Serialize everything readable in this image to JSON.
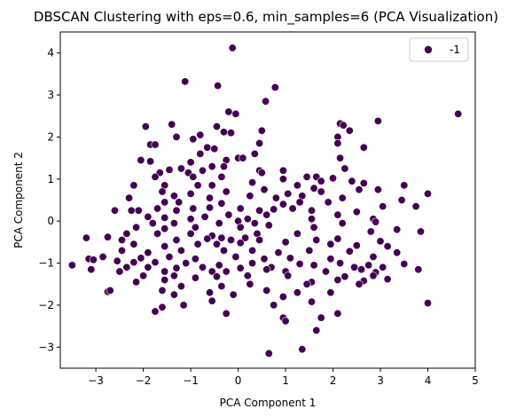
{
  "chart_data": {
    "type": "scatter",
    "title": "DBSCAN Clustering with eps=0.6, min_samples=6 (PCA Visualization)",
    "xlabel": "PCA Component 1",
    "ylabel": "PCA Component 2",
    "xlim": [
      -3.75,
      5.0
    ],
    "ylim": [
      -3.5,
      4.5
    ],
    "xticks": [
      -3,
      -2,
      -1,
      0,
      1,
      2,
      3,
      4,
      5
    ],
    "yticks": [
      -3,
      -2,
      -1,
      0,
      1,
      2,
      3,
      4
    ],
    "grid": false,
    "legend": {
      "position": "top-right",
      "entries": [
        {
          "label": "-1",
          "color": "#440154"
        }
      ]
    },
    "series": [
      {
        "name": "-1",
        "color": "#440154",
        "points": [
          [
            -0.12,
            4.12
          ],
          [
            -0.43,
            3.22
          ],
          [
            0.78,
            3.18
          ],
          [
            -1.12,
            3.32
          ],
          [
            4.64,
            2.55
          ],
          [
            0.58,
            2.85
          ],
          [
            -0.2,
            2.6
          ],
          [
            -0.05,
            2.55
          ],
          [
            -0.45,
            2.25
          ],
          [
            -1.4,
            2.3
          ],
          [
            -1.95,
            2.25
          ],
          [
            2.15,
            2.32
          ],
          [
            2.22,
            2.28
          ],
          [
            2.95,
            2.38
          ],
          [
            2.1,
            2.0
          ],
          [
            2.35,
            2.15
          ],
          [
            -0.8,
            2.05
          ],
          [
            -1.3,
            2.0
          ],
          [
            0.5,
            2.15
          ],
          [
            -0.15,
            2.1
          ],
          [
            -0.3,
            2.12
          ],
          [
            -1.85,
            1.82
          ],
          [
            -1.75,
            1.82
          ],
          [
            -0.95,
            1.95
          ],
          [
            -0.65,
            1.75
          ],
          [
            -0.5,
            1.72
          ],
          [
            0.45,
            1.85
          ],
          [
            2.1,
            1.85
          ],
          [
            -0.8,
            1.6
          ],
          [
            0.35,
            1.6
          ],
          [
            2.65,
            1.75
          ],
          [
            0.0,
            1.5
          ],
          [
            -2.05,
            1.45
          ],
          [
            -1.85,
            1.42
          ],
          [
            -0.25,
            1.45
          ],
          [
            0.1,
            1.5
          ],
          [
            -1.0,
            1.4
          ],
          [
            2.15,
            1.5
          ],
          [
            -1.2,
            1.25
          ],
          [
            -1.45,
            1.22
          ],
          [
            -0.55,
            1.3
          ],
          [
            -0.3,
            1.3
          ],
          [
            -1.65,
            1.15
          ],
          [
            -1.05,
            1.15
          ],
          [
            -0.75,
            1.2
          ],
          [
            0.45,
            1.2
          ],
          [
            0.5,
            1.15
          ],
          [
            0.95,
            1.2
          ],
          [
            2.25,
            1.25
          ],
          [
            1.45,
            1.05
          ],
          [
            1.65,
            1.05
          ],
          [
            -1.75,
            1.05
          ],
          [
            -0.95,
            1.05
          ],
          [
            -0.35,
            1.05
          ],
          [
            0.95,
            1.0
          ],
          [
            1.75,
            0.95
          ],
          [
            2.0,
            1.02
          ],
          [
            2.65,
            0.9
          ],
          [
            -2.2,
            0.85
          ],
          [
            -1.55,
            0.85
          ],
          [
            -0.85,
            0.85
          ],
          [
            -0.55,
            0.85
          ],
          [
            0.3,
            0.92
          ],
          [
            1.25,
            0.85
          ],
          [
            1.6,
            0.78
          ],
          [
            2.4,
            0.95
          ],
          [
            2.95,
            0.75
          ],
          [
            3.5,
            0.85
          ],
          [
            -1.6,
            0.7
          ],
          [
            -1.0,
            0.65
          ],
          [
            -0.25,
            0.7
          ],
          [
            0.55,
            0.75
          ],
          [
            1.05,
            0.65
          ],
          [
            1.35,
            0.6
          ],
          [
            1.75,
            0.7
          ],
          [
            2.55,
            0.75
          ],
          [
            4.0,
            0.65
          ],
          [
            -2.3,
            0.55
          ],
          [
            -1.35,
            0.6
          ],
          [
            -0.6,
            0.55
          ],
          [
            0.25,
            0.6
          ],
          [
            0.8,
            0.55
          ],
          [
            1.3,
            0.45
          ],
          [
            2.2,
            0.55
          ],
          [
            3.45,
            0.5
          ],
          [
            -1.55,
            0.45
          ],
          [
            -1.25,
            0.45
          ],
          [
            -0.35,
            0.42
          ],
          [
            0.95,
            0.4
          ],
          [
            1.9,
            0.45
          ],
          [
            -2.1,
            0.25
          ],
          [
            -1.7,
            0.3
          ],
          [
            -0.95,
            0.3
          ],
          [
            -0.6,
            0.32
          ],
          [
            0.05,
            0.3
          ],
          [
            0.45,
            0.25
          ],
          [
            0.75,
            0.28
          ],
          [
            1.15,
            0.3
          ],
          [
            1.55,
            0.25
          ],
          [
            2.5,
            0.22
          ],
          [
            3.05,
            0.35
          ],
          [
            3.75,
            0.35
          ],
          [
            -2.6,
            0.25
          ],
          [
            -2.25,
            0.25
          ],
          [
            -1.3,
            0.25
          ],
          [
            -0.2,
            0.15
          ],
          [
            0.6,
            0.15
          ],
          [
            2.1,
            0.15
          ],
          [
            -1.9,
            0.1
          ],
          [
            -1.55,
            0.08
          ],
          [
            -1.0,
            0.05
          ],
          [
            -0.7,
            0.1
          ],
          [
            0.2,
            0.05
          ],
          [
            1.55,
            0.05
          ],
          [
            2.85,
            0.05
          ],
          [
            -1.8,
            -0.05
          ],
          [
            -1.35,
            -0.05
          ],
          [
            -0.4,
            -0.05
          ],
          [
            0.0,
            0.0
          ],
          [
            0.35,
            -0.05
          ],
          [
            2.2,
            -0.05
          ],
          [
            2.9,
            -0.02
          ],
          [
            -2.15,
            -0.15
          ],
          [
            -1.55,
            -0.18
          ],
          [
            -0.9,
            -0.15
          ],
          [
            0.05,
            -0.15
          ],
          [
            0.65,
            -0.1
          ],
          [
            1.6,
            -0.15
          ],
          [
            3.35,
            -0.2
          ],
          [
            -2.35,
            -0.3
          ],
          [
            -1.7,
            -0.3
          ],
          [
            -1.0,
            -0.3
          ],
          [
            -0.55,
            -0.35
          ],
          [
            -0.35,
            -0.4
          ],
          [
            0.4,
            -0.3
          ],
          [
            1.25,
            -0.3
          ],
          [
            2.8,
            -0.25
          ],
          [
            3.85,
            -0.25
          ],
          [
            -3.2,
            -0.4
          ],
          [
            -2.75,
            -0.38
          ],
          [
            -2.45,
            -0.45
          ],
          [
            -1.3,
            -0.45
          ],
          [
            -0.65,
            -0.42
          ],
          [
            -0.15,
            -0.45
          ],
          [
            0.15,
            -0.4
          ],
          [
            0.45,
            -0.45
          ],
          [
            1.65,
            -0.45
          ],
          [
            2.1,
            -0.42
          ],
          [
            3.0,
            -0.48
          ],
          [
            -2.2,
            -0.55
          ],
          [
            -1.55,
            -0.6
          ],
          [
            -0.85,
            -0.55
          ],
          [
            -0.45,
            -0.55
          ],
          [
            0.05,
            -0.52
          ],
          [
            1.0,
            -0.5
          ],
          [
            1.95,
            -0.55
          ],
          [
            2.5,
            -0.58
          ],
          [
            3.15,
            -0.6
          ],
          [
            -2.45,
            -0.7
          ],
          [
            -1.9,
            -0.75
          ],
          [
            -1.2,
            -0.7
          ],
          [
            -0.3,
            -0.7
          ],
          [
            0.3,
            -0.7
          ],
          [
            0.85,
            -0.75
          ],
          [
            1.5,
            -0.7
          ],
          [
            2.35,
            -0.72
          ],
          [
            3.35,
            -0.75
          ],
          [
            -2.85,
            -0.85
          ],
          [
            -2.05,
            -0.88
          ],
          [
            -1.45,
            -0.85
          ],
          [
            -0.9,
            -0.9
          ],
          [
            -0.05,
            -0.85
          ],
          [
            0.55,
            -0.9
          ],
          [
            1.1,
            -0.88
          ],
          [
            1.95,
            -0.9
          ],
          [
            2.85,
            -0.85
          ],
          [
            -3.15,
            -0.9
          ],
          [
            -3.05,
            -0.92
          ],
          [
            -2.55,
            -0.95
          ],
          [
            -2.2,
            -0.98
          ],
          [
            -1.75,
            -0.98
          ],
          [
            -1.1,
            -1.0
          ],
          [
            -0.4,
            -1.05
          ],
          [
            0.3,
            -1.0
          ],
          [
            1.3,
            -1.02
          ],
          [
            2.15,
            -1.0
          ],
          [
            2.75,
            -1.05
          ],
          [
            3.5,
            -1.02
          ],
          [
            -3.5,
            -1.05
          ],
          [
            -2.35,
            -1.1
          ],
          [
            -1.9,
            -1.1
          ],
          [
            -1.3,
            -1.12
          ],
          [
            -0.75,
            -1.1
          ],
          [
            0.05,
            -1.12
          ],
          [
            0.7,
            -1.1
          ],
          [
            1.6,
            -1.05
          ],
          [
            2.45,
            -1.1
          ],
          [
            3.05,
            -1.1
          ],
          [
            -3.1,
            -1.15
          ],
          [
            -2.5,
            -1.2
          ],
          [
            -1.55,
            -1.2
          ],
          [
            -0.55,
            -1.2
          ],
          [
            -0.25,
            -1.2
          ],
          [
            0.6,
            -1.15
          ],
          [
            1.0,
            -1.2
          ],
          [
            1.85,
            -1.2
          ],
          [
            2.6,
            -1.15
          ],
          [
            2.9,
            -1.22
          ],
          [
            3.8,
            -1.15
          ],
          [
            -2.0,
            -1.3
          ],
          [
            -1.35,
            -1.3
          ],
          [
            -0.45,
            -1.32
          ],
          [
            0.2,
            -1.3
          ],
          [
            1.05,
            -1.3
          ],
          [
            2.25,
            -1.32
          ],
          [
            2.85,
            -1.3
          ],
          [
            -1.55,
            -1.4
          ],
          [
            -0.9,
            -1.35
          ],
          [
            2.1,
            -1.4
          ],
          [
            3.15,
            -1.38
          ],
          [
            -2.15,
            -1.45
          ],
          [
            0.25,
            -1.5
          ],
          [
            1.55,
            -1.45
          ],
          [
            2.65,
            -1.42
          ],
          [
            -1.2,
            -1.55
          ],
          [
            -0.35,
            -1.55
          ],
          [
            1.45,
            -1.5
          ],
          [
            2.55,
            -1.5
          ],
          [
            -1.6,
            -1.65
          ],
          [
            -0.6,
            -1.7
          ],
          [
            0.6,
            -1.65
          ],
          [
            1.25,
            -1.7
          ],
          [
            1.95,
            -1.7
          ],
          [
            -2.75,
            -1.68
          ],
          [
            -2.7,
            -1.65
          ],
          [
            -1.35,
            -1.75
          ],
          [
            -0.1,
            -1.75
          ],
          [
            0.95,
            -1.8
          ],
          [
            -0.55,
            -1.9
          ],
          [
            1.55,
            -1.92
          ],
          [
            -1.15,
            -2.0
          ],
          [
            -1.6,
            -2.05
          ],
          [
            0.75,
            -2.0
          ],
          [
            4.0,
            -1.95
          ],
          [
            -1.75,
            -2.15
          ],
          [
            -0.25,
            -2.2
          ],
          [
            2.1,
            -2.2
          ],
          [
            1.75,
            -2.3
          ],
          [
            0.95,
            -2.3
          ],
          [
            1.0,
            -2.38
          ],
          [
            1.65,
            -2.6
          ],
          [
            1.35,
            -3.05
          ],
          [
            0.65,
            -3.15
          ]
        ]
      }
    ]
  }
}
